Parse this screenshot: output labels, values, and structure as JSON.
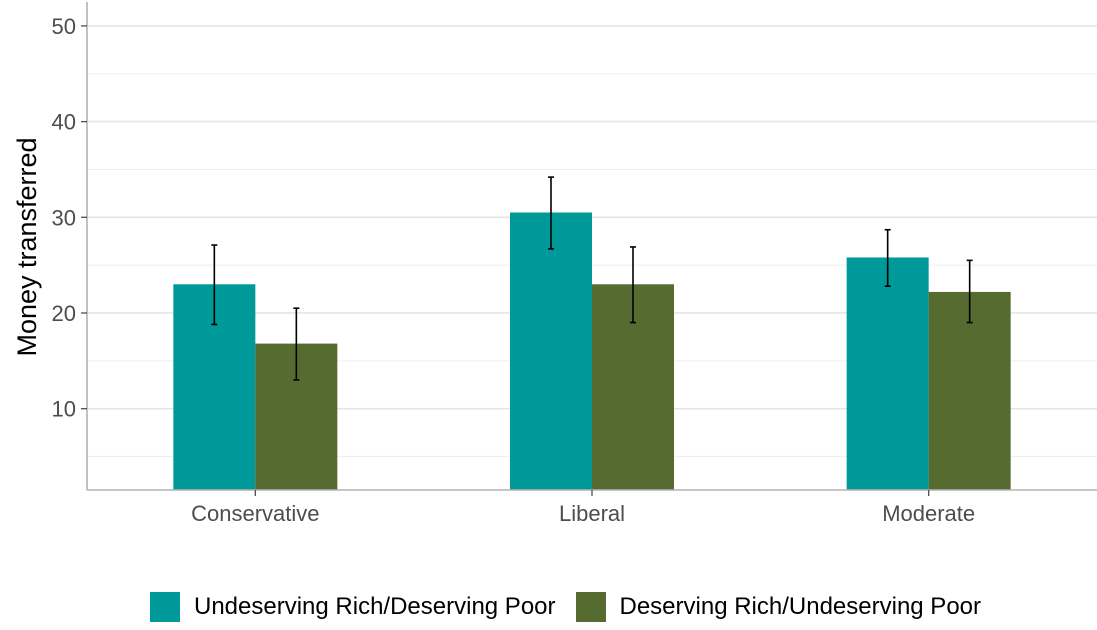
{
  "chart_data": {
    "type": "bar",
    "categories": [
      "Conservative",
      "Liberal",
      "Moderate"
    ],
    "series": [
      {
        "name": "Undeserving Rich/Deserving Poor",
        "color": "#009999",
        "values": [
          23.0,
          30.5,
          25.8
        ],
        "error_low": [
          18.8,
          26.7,
          22.8
        ],
        "error_high": [
          27.1,
          34.2,
          28.7
        ]
      },
      {
        "name": "Deserving Rich/Undeserving Poor",
        "color": "#556b2f",
        "values": [
          16.8,
          23.0,
          22.2
        ],
        "error_low": [
          13.0,
          19.0,
          19.0
        ],
        "error_high": [
          20.5,
          26.9,
          25.5
        ]
      }
    ],
    "xlabel": "",
    "ylabel": "Money transferred",
    "yticks": [
      10,
      20,
      30,
      40,
      50
    ],
    "ylim": [
      1.5,
      52.5
    ],
    "grid": true,
    "legend_position": "bottom"
  }
}
